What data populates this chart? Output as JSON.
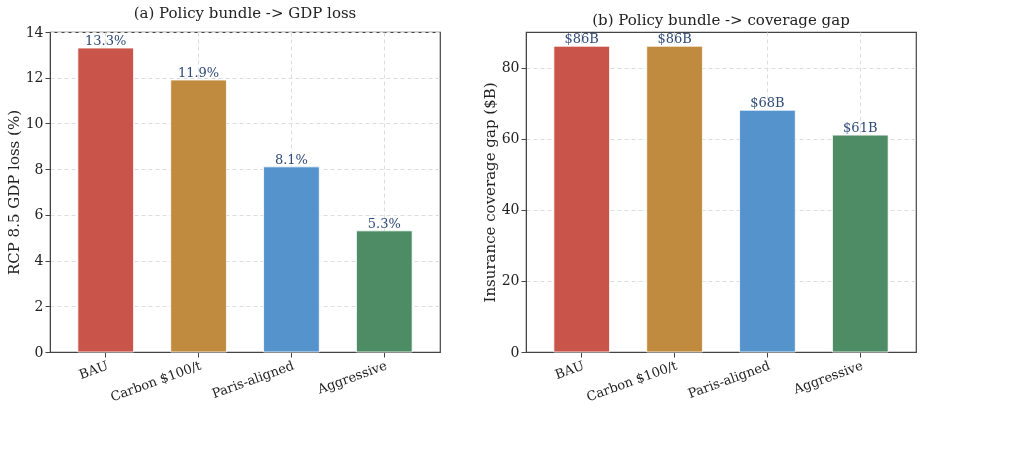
{
  "chart_data": [
    {
      "type": "bar",
      "title": "(a) Policy bundle -> GDP loss",
      "ylabel": "RCP 8.5 GDP loss (%)",
      "categories": [
        "BAU",
        "Carbon $100/t",
        "Paris-aligned",
        "Aggressive"
      ],
      "values": [
        13.3,
        11.9,
        8.1,
        5.3
      ],
      "colors": [
        "#c9554a",
        "#c08a3f",
        "#5593cc",
        "#4d8c64"
      ],
      "value_labels": [
        "13.3%",
        "11.9%",
        "8.1%",
        "5.3%"
      ],
      "ylim": [
        0,
        14
      ],
      "yticks": [
        0,
        2,
        4,
        6,
        8,
        10,
        12,
        14
      ],
      "grid": true
    },
    {
      "type": "bar",
      "title": "(b) Policy bundle -> coverage gap",
      "ylabel": "Insurance coverage gap ($B)",
      "categories": [
        "BAU",
        "Carbon $100/t",
        "Paris-aligned",
        "Aggressive"
      ],
      "values": [
        86,
        86,
        68,
        61
      ],
      "colors": [
        "#c9554a",
        "#c08a3f",
        "#5593cc",
        "#4d8c64"
      ],
      "value_labels": [
        "$86B",
        "$86B",
        "$68B",
        "$61B"
      ],
      "ylim": [
        0,
        90
      ],
      "yticks": [
        0,
        20,
        40,
        60,
        80
      ],
      "grid": true
    }
  ]
}
